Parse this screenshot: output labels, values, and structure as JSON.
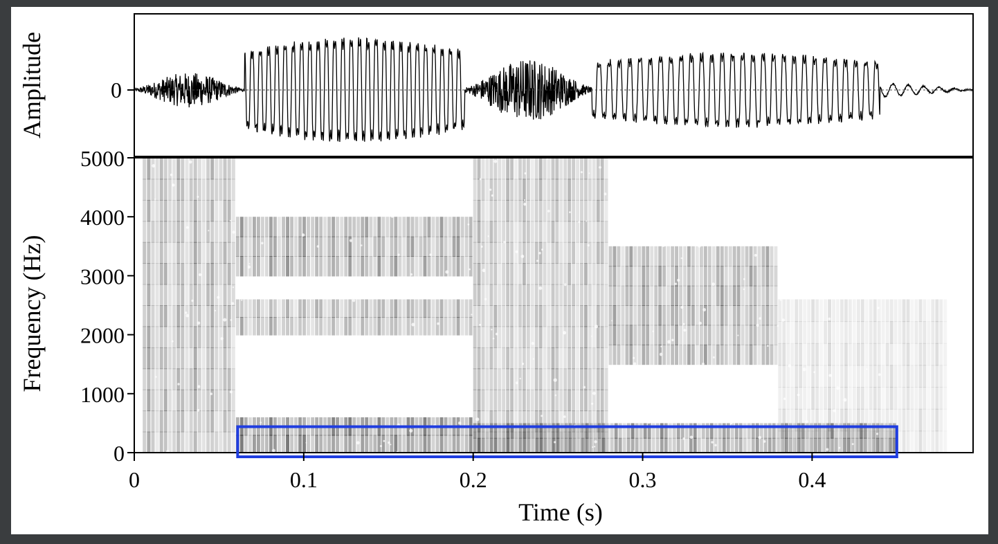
{
  "chart_data": [
    {
      "type": "line",
      "panel": "waveform",
      "ylabel": "Amplitude",
      "y_ticks": [
        "0"
      ],
      "xlim": [
        0,
        0.495
      ],
      "zero_line": true,
      "segments": [
        {
          "x": [
            0.0,
            0.065
          ],
          "kind": "noise",
          "amplitude": 0.25
        },
        {
          "x": [
            0.065,
            0.195
          ],
          "kind": "voiced",
          "amplitude": 1.0
        },
        {
          "x": [
            0.195,
            0.27
          ],
          "kind": "noise",
          "amplitude": 0.45
        },
        {
          "x": [
            0.27,
            0.44
          ],
          "kind": "voiced",
          "amplitude": 0.7
        },
        {
          "x": [
            0.44,
            0.495
          ],
          "kind": "decay",
          "amplitude": 0.1
        }
      ]
    },
    {
      "type": "heatmap",
      "panel": "spectrogram",
      "xlabel": "Time (s)",
      "ylabel": "Frequency (Hz)",
      "xlim": [
        0,
        0.495
      ],
      "ylim": [
        0,
        5000
      ],
      "x_ticks": [
        {
          "value": 0,
          "label": "0"
        },
        {
          "value": 0.1,
          "label": "0.1"
        },
        {
          "value": 0.2,
          "label": "0.2"
        },
        {
          "value": 0.3,
          "label": "0.3"
        },
        {
          "value": 0.4,
          "label": "0.4"
        }
      ],
      "y_ticks": [
        {
          "value": 0,
          "label": "0"
        },
        {
          "value": 1000,
          "label": "1000"
        },
        {
          "value": 2000,
          "label": "2000"
        },
        {
          "value": 3000,
          "label": "3000"
        },
        {
          "value": 4000,
          "label": "4000"
        },
        {
          "value": 5000,
          "label": "5000"
        }
      ],
      "colormap": "grayscale",
      "energy_regions": [
        {
          "t": [
            0.005,
            0.06
          ],
          "f": [
            0,
            5000
          ],
          "intensity": 0.6
        },
        {
          "t": [
            0.06,
            0.2
          ],
          "f": [
            0,
            600
          ],
          "intensity": 0.95
        },
        {
          "t": [
            0.06,
            0.2
          ],
          "f": [
            2000,
            2600
          ],
          "intensity": 0.65
        },
        {
          "t": [
            0.06,
            0.2
          ],
          "f": [
            3000,
            4000
          ],
          "intensity": 0.75
        },
        {
          "t": [
            0.2,
            0.28
          ],
          "f": [
            0,
            5000
          ],
          "intensity": 0.55
        },
        {
          "t": [
            0.28,
            0.38
          ],
          "f": [
            1500,
            3500
          ],
          "intensity": 0.7
        },
        {
          "t": [
            0.2,
            0.45
          ],
          "f": [
            0,
            500
          ],
          "intensity": 0.85
        },
        {
          "t": [
            0.38,
            0.48
          ],
          "f": [
            0,
            2600
          ],
          "intensity": 0.25
        }
      ],
      "highlight_box": {
        "t": [
          0.061,
          0.45
        ],
        "f": [
          0,
          440
        ],
        "color": "#1f3de0"
      }
    }
  ]
}
